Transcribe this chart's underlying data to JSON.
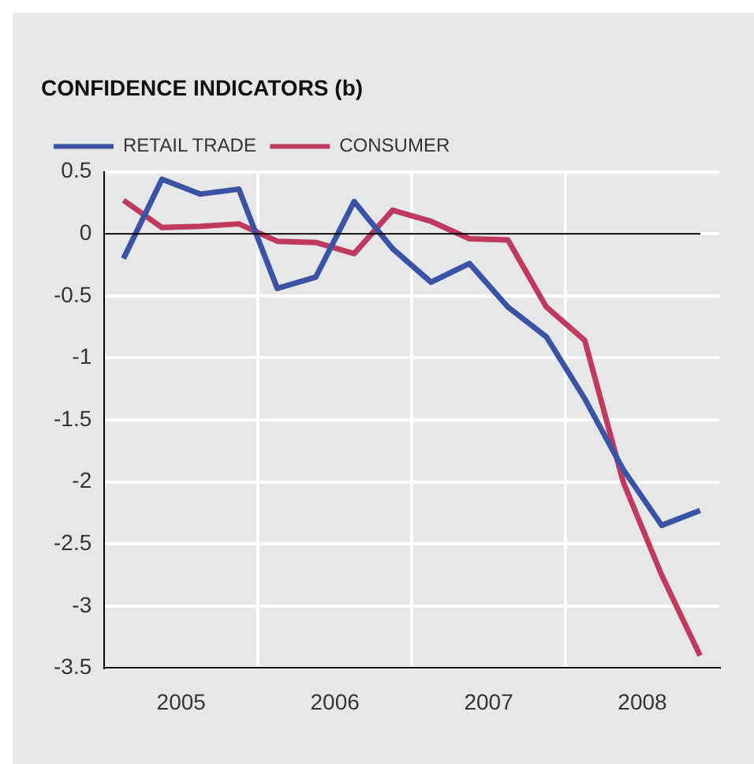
{
  "chart_data": {
    "type": "line",
    "title": "CONFIDENCE INDICATORS (b)",
    "x": [
      2005.125,
      2005.375,
      2005.625,
      2005.875,
      2006.125,
      2006.375,
      2006.625,
      2006.875,
      2007.125,
      2007.375,
      2007.625,
      2007.875,
      2008.125,
      2008.375,
      2008.625,
      2008.875
    ],
    "series": [
      {
        "name": "RETAIL TRADE",
        "color": "#3a53a4",
        "values": [
          -0.2,
          0.44,
          0.32,
          0.36,
          -0.44,
          -0.35,
          0.26,
          -0.12,
          -0.39,
          -0.24,
          -0.59,
          -0.83,
          -1.33,
          -1.9,
          -2.35,
          -2.23
        ]
      },
      {
        "name": "CONSUMER",
        "color": "#c0395f",
        "values": [
          0.27,
          0.05,
          0.06,
          0.08,
          -0.06,
          -0.07,
          -0.16,
          0.19,
          0.1,
          -0.04,
          -0.05,
          -0.59,
          -0.86,
          -2.0,
          -2.75,
          -3.4
        ]
      }
    ],
    "xlim": [
      2005,
      2009
    ],
    "xticks": [
      {
        "value": 2005.5,
        "label": "2005"
      },
      {
        "value": 2006,
        "label": null
      },
      {
        "value": 2006.5,
        "label": "2006"
      },
      {
        "value": 2007,
        "label": null
      },
      {
        "value": 2007.5,
        "label": "2007"
      },
      {
        "value": 2008,
        "label": null
      },
      {
        "value": 2008.5,
        "label": "2008"
      }
    ],
    "ylim": [
      -3.5,
      0.5
    ],
    "yticks": [
      -3.5,
      -3,
      -2.5,
      -2,
      -1.5,
      -1,
      -0.5,
      0,
      0.5
    ],
    "ref_lines": [
      {
        "axis": "y",
        "value": 0,
        "color": "#000000"
      }
    ],
    "grid": true,
    "legend": "top left",
    "marker": "none",
    "line_style": "solid"
  }
}
